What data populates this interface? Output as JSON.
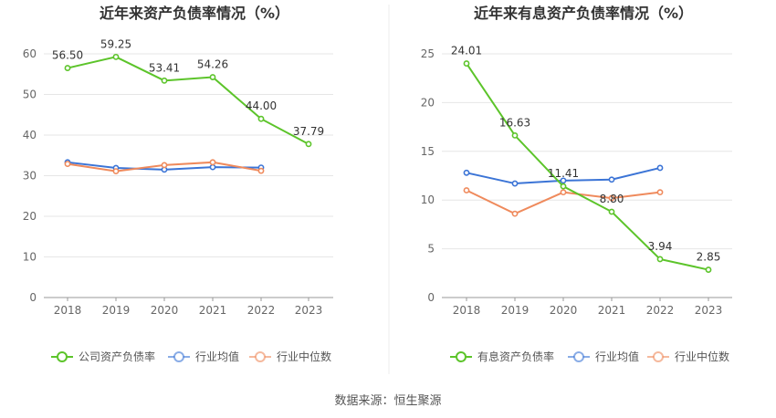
{
  "charts": [
    {
      "type": "line",
      "title": "近年来资产负债率情况（%）",
      "categories": [
        "2018",
        "2019",
        "2020",
        "2021",
        "2022",
        "2023"
      ],
      "ylim": [
        0,
        60
      ],
      "yticks": [
        0,
        10,
        20,
        30,
        40,
        50,
        60
      ],
      "grid": true,
      "legend_position": "bottom",
      "series": [
        {
          "name": "公司资产负债率",
          "color": "#5cc42a",
          "values": [
            56.5,
            59.25,
            53.41,
            54.26,
            44.0,
            37.79
          ],
          "labels": [
            "56.50",
            "59.25",
            "53.41",
            "54.26",
            "44.00",
            "37.79"
          ]
        },
        {
          "name": "行业均值",
          "color": "#3b74d6",
          "values": [
            33.3,
            31.9,
            31.5,
            32.1,
            32.0,
            null
          ]
        },
        {
          "name": "行业中位数",
          "color": "#ef8a5c",
          "values": [
            32.9,
            31.1,
            32.6,
            33.3,
            31.2,
            null
          ]
        }
      ]
    },
    {
      "type": "line",
      "title": "近年来有息资产负债率情况（%）",
      "categories": [
        "2018",
        "2019",
        "2020",
        "2021",
        "2022",
        "2023"
      ],
      "ylim": [
        0,
        25
      ],
      "yticks": [
        0,
        5,
        10,
        15,
        20,
        25
      ],
      "grid": true,
      "legend_position": "bottom",
      "series": [
        {
          "name": "有息资产负债率",
          "color": "#5cc42a",
          "values": [
            24.01,
            16.63,
            11.41,
            8.8,
            3.94,
            2.85
          ],
          "labels": [
            "24.01",
            "16.63",
            "11.41",
            "8.80",
            "3.94",
            "2.85"
          ]
        },
        {
          "name": "行业均值",
          "color": "#3b74d6",
          "values": [
            12.8,
            11.7,
            12.0,
            12.1,
            13.3,
            null
          ]
        },
        {
          "name": "行业中位数",
          "color": "#ef8a5c",
          "values": [
            11.0,
            8.6,
            10.8,
            10.2,
            10.8,
            null
          ]
        }
      ]
    }
  ],
  "source_text": "数据来源：恒生聚源"
}
